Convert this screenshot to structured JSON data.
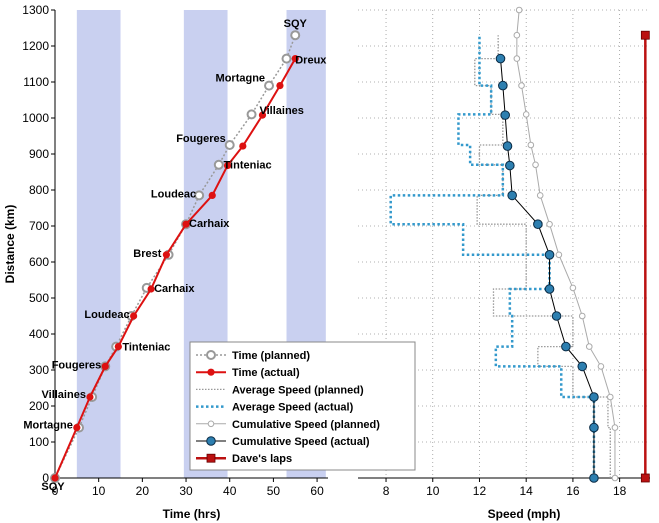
{
  "colors": {
    "night_band": "#c9d0f0",
    "planned": "#999999",
    "actual": "#dd1111",
    "avg_actual": "#3399cc",
    "cum_planned": "#aaaaaa",
    "cum_actual_fill": "#2d7fb0",
    "laps": "#bb1111"
  },
  "chart_data": [
    {
      "type": "line",
      "title": "",
      "xlabel": "Time (hrs)",
      "ylabel": "Distance (km)",
      "xlim": [
        0,
        62.5
      ],
      "ylim": [
        0,
        1300
      ],
      "xticks": [
        0,
        10,
        20,
        30,
        40,
        50,
        60
      ],
      "yticks": [
        0,
        100,
        200,
        300,
        400,
        500,
        600,
        700,
        800,
        900,
        1000,
        1100,
        1200,
        1300
      ],
      "night_bands": [
        [
          5,
          15
        ],
        [
          29.5,
          39.5
        ],
        [
          53,
          62
        ]
      ],
      "series": [
        {
          "name": "Time (planned)",
          "points": [
            [
              0,
              0
            ],
            [
              5.5,
              140
            ],
            [
              8.5,
              225
            ],
            [
              11.5,
              310
            ],
            [
              14,
              365
            ],
            [
              17.5,
              450
            ],
            [
              21,
              528
            ],
            [
              26,
              620
            ],
            [
              30,
              705
            ],
            [
              33,
              785
            ],
            [
              37.5,
              870
            ],
            [
              40,
              925
            ],
            [
              45,
              1010
            ],
            [
              49,
              1090
            ],
            [
              53,
              1165
            ],
            [
              55,
              1230
            ]
          ]
        },
        {
          "name": "Time (actual)",
          "points": [
            [
              0,
              0
            ],
            [
              5,
              140
            ],
            [
              8,
              225
            ],
            [
              11.5,
              310
            ],
            [
              14.5,
              365
            ],
            [
              18,
              450
            ],
            [
              22,
              525
            ],
            [
              25.5,
              620
            ],
            [
              30,
              705
            ],
            [
              36,
              785
            ],
            [
              39.5,
              868
            ],
            [
              43,
              922
            ],
            [
              47.5,
              1008
            ],
            [
              51.5,
              1090
            ],
            [
              55,
              1165
            ]
          ]
        }
      ],
      "town_labels": [
        {
          "text": "SQY",
          "x": 0,
          "y": 0
        },
        {
          "text": "Mortagne",
          "x": 5,
          "y": 140
        },
        {
          "text": "Villaines",
          "x": 8,
          "y": 225
        },
        {
          "text": "Fougeres",
          "x": 11.5,
          "y": 310
        },
        {
          "text": "Tinteniac",
          "x": 14.5,
          "y": 365
        },
        {
          "text": "Loudeac",
          "x": 18,
          "y": 450
        },
        {
          "text": "Carhaix",
          "x": 22,
          "y": 525
        },
        {
          "text": "Brest",
          "x": 25.5,
          "y": 620
        },
        {
          "text": "Carhaix",
          "x": 30,
          "y": 705
        },
        {
          "text": "Loudeac",
          "x": 33,
          "y": 785
        },
        {
          "text": "Tinteniac",
          "x": 39.5,
          "y": 868
        },
        {
          "text": "Fougeres",
          "x": 40,
          "y": 925
        },
        {
          "text": "Villaines",
          "x": 47.5,
          "y": 1008
        },
        {
          "text": "Mortagne",
          "x": 49,
          "y": 1090
        },
        {
          "text": "Dreux",
          "x": 55,
          "y": 1165
        },
        {
          "text": "SQY",
          "x": 55,
          "y": 1230
        }
      ]
    },
    {
      "type": "line",
      "title": "",
      "xlabel": "Speed (mph)",
      "ylabel": "",
      "xlim": [
        6.8,
        19.3
      ],
      "ylim": [
        0,
        1300
      ],
      "xticks": [
        8,
        10,
        12,
        14,
        16,
        18
      ],
      "series": [
        {
          "name": "Average Speed (planned)",
          "steps": [
            [
              0,
              140,
              17.6
            ],
            [
              140,
              225,
              17.5
            ],
            [
              225,
              310,
              16
            ],
            [
              310,
              365,
              14.5
            ],
            [
              365,
              450,
              16
            ],
            [
              450,
              525,
              12.6
            ],
            [
              525,
              620,
              14
            ],
            [
              620,
              705,
              14
            ],
            [
              705,
              785,
              11.9
            ],
            [
              785,
              870,
              13
            ],
            [
              870,
              925,
              12
            ],
            [
              925,
              1010,
              13
            ],
            [
              1010,
              1090,
              12.5
            ],
            [
              1090,
              1165,
              11.8
            ],
            [
              1165,
              1230,
              12.8
            ]
          ]
        },
        {
          "name": "Average Speed (actual)",
          "steps": [
            [
              0,
              140,
              16.9
            ],
            [
              140,
              225,
              16.9
            ],
            [
              225,
              310,
              15.5
            ],
            [
              310,
              365,
              12.7
            ],
            [
              365,
              450,
              13.4
            ],
            [
              450,
              525,
              13.3
            ],
            [
              525,
              620,
              15
            ],
            [
              620,
              705,
              11.3
            ],
            [
              705,
              785,
              8.2
            ],
            [
              785,
              870,
              13
            ],
            [
              870,
              925,
              11.6
            ],
            [
              925,
              1010,
              11.1
            ],
            [
              1010,
              1090,
              12.5
            ],
            [
              1090,
              1165,
              12
            ],
            [
              1165,
              1230,
              12
            ]
          ]
        },
        {
          "name": "Cumulative Speed (planned)",
          "points": [
            [
              17.8,
              0
            ],
            [
              17.8,
              140
            ],
            [
              17.6,
              225
            ],
            [
              17.2,
              310
            ],
            [
              16.7,
              365
            ],
            [
              16.4,
              450
            ],
            [
              16,
              528
            ],
            [
              15.4,
              620
            ],
            [
              15,
              705
            ],
            [
              14.6,
              785
            ],
            [
              14.4,
              870
            ],
            [
              14.2,
              925
            ],
            [
              14,
              1010
            ],
            [
              13.8,
              1090
            ],
            [
              13.6,
              1165
            ],
            [
              13.6,
              1230
            ],
            [
              13.7,
              1300
            ]
          ]
        },
        {
          "name": "Cumulative Speed (actual)",
          "points": [
            [
              16.9,
              0
            ],
            [
              16.9,
              140
            ],
            [
              16.9,
              225
            ],
            [
              16.4,
              310
            ],
            [
              15.7,
              365
            ],
            [
              15.3,
              450
            ],
            [
              15,
              525
            ],
            [
              15,
              620
            ],
            [
              14.5,
              705
            ],
            [
              13.4,
              785
            ],
            [
              13.3,
              868
            ],
            [
              13.2,
              922
            ],
            [
              13.1,
              1008
            ],
            [
              13,
              1090
            ],
            [
              12.9,
              1165
            ]
          ]
        },
        {
          "name": "Dave's laps",
          "x": 19.1,
          "y_range": [
            0,
            1230
          ]
        }
      ]
    }
  ],
  "legend": {
    "placement": "bottom-left of right plot area",
    "entries": [
      {
        "label": "Time (planned)",
        "key": "time_planned"
      },
      {
        "label": "Time (actual)",
        "key": "time_actual"
      },
      {
        "label": "Average Speed (planned)",
        "key": "avg_planned"
      },
      {
        "label": "Average Speed (actual)",
        "key": "avg_actual"
      },
      {
        "label": "Cumulative Speed (planned)",
        "key": "cum_planned"
      },
      {
        "label": "Cumulative Speed (actual)",
        "key": "cum_actual"
      },
      {
        "label": "Dave's laps",
        "key": "laps"
      }
    ]
  }
}
